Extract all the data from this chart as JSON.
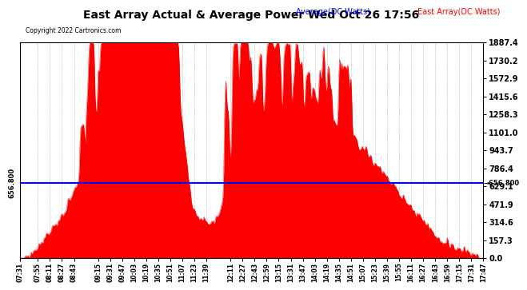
{
  "title": "East Array Actual & Average Power Wed Oct 26 17:56",
  "copyright": "Copyright 2022 Cartronics.com",
  "legend_avg": "Average(DC Watts)",
  "legend_east": "East Array(DC Watts)",
  "avg_value": 656.8,
  "ymax": 1887.4,
  "ymin": 0.0,
  "yticks": [
    0.0,
    157.3,
    314.6,
    471.9,
    629.1,
    786.4,
    943.7,
    1101.0,
    1258.3,
    1415.6,
    1572.9,
    1730.2,
    1887.4
  ],
  "xtick_labels": [
    "07:31",
    "07:55",
    "08:11",
    "08:27",
    "08:43",
    "09:15",
    "09:31",
    "09:47",
    "10:03",
    "10:19",
    "10:35",
    "10:51",
    "11:07",
    "11:23",
    "11:39",
    "12:11",
    "12:27",
    "12:43",
    "12:59",
    "13:15",
    "13:31",
    "13:47",
    "14:03",
    "14:19",
    "14:35",
    "14:51",
    "15:07",
    "15:23",
    "15:39",
    "15:55",
    "16:11",
    "16:27",
    "16:43",
    "16:59",
    "17:15",
    "17:31",
    "17:47"
  ],
  "background_color": "#ffffff",
  "grid_color": "#aaaaaa",
  "avg_line_color": "#0000ff",
  "fill_color": "#ff0000",
  "title_color": "#000000",
  "copyright_color": "#000000"
}
